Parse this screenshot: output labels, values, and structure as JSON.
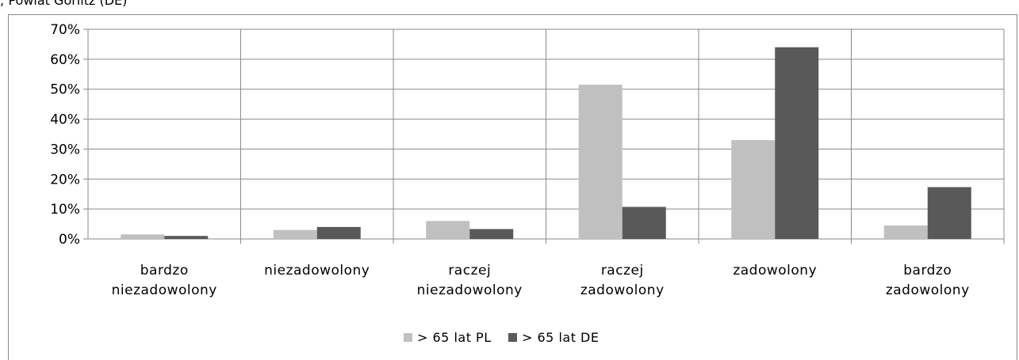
{
  "page": {
    "heading": "; Powiat Görlitz (DE)"
  },
  "chart_data": {
    "type": "bar",
    "categories": [
      [
        "bardzo",
        "niezadowolony"
      ],
      [
        "niezadowolony"
      ],
      [
        "raczej",
        "niezadowolony"
      ],
      [
        "raczej",
        "zadowolony"
      ],
      [
        "zadowolony"
      ],
      [
        "bardzo",
        "zadowolony"
      ]
    ],
    "series": [
      {
        "name": "> 65 lat PL",
        "color": "#c0c0c0",
        "values": [
          1.5,
          3.0,
          6.0,
          51.5,
          33.0,
          4.5
        ]
      },
      {
        "name": "> 65 lat DE",
        "color": "#595959",
        "values": [
          1.0,
          4.0,
          3.3,
          10.7,
          64.0,
          17.3
        ]
      }
    ],
    "ylim": [
      0,
      70
    ],
    "yticks": [
      0,
      10,
      20,
      30,
      40,
      50,
      60,
      70
    ],
    "ytick_labels": [
      "0%",
      "10%",
      "20%",
      "30%",
      "40%",
      "50%",
      "60%",
      "70%"
    ],
    "grid": true,
    "legend": "bottom",
    "title": "",
    "xlabel": "",
    "ylabel": ""
  }
}
